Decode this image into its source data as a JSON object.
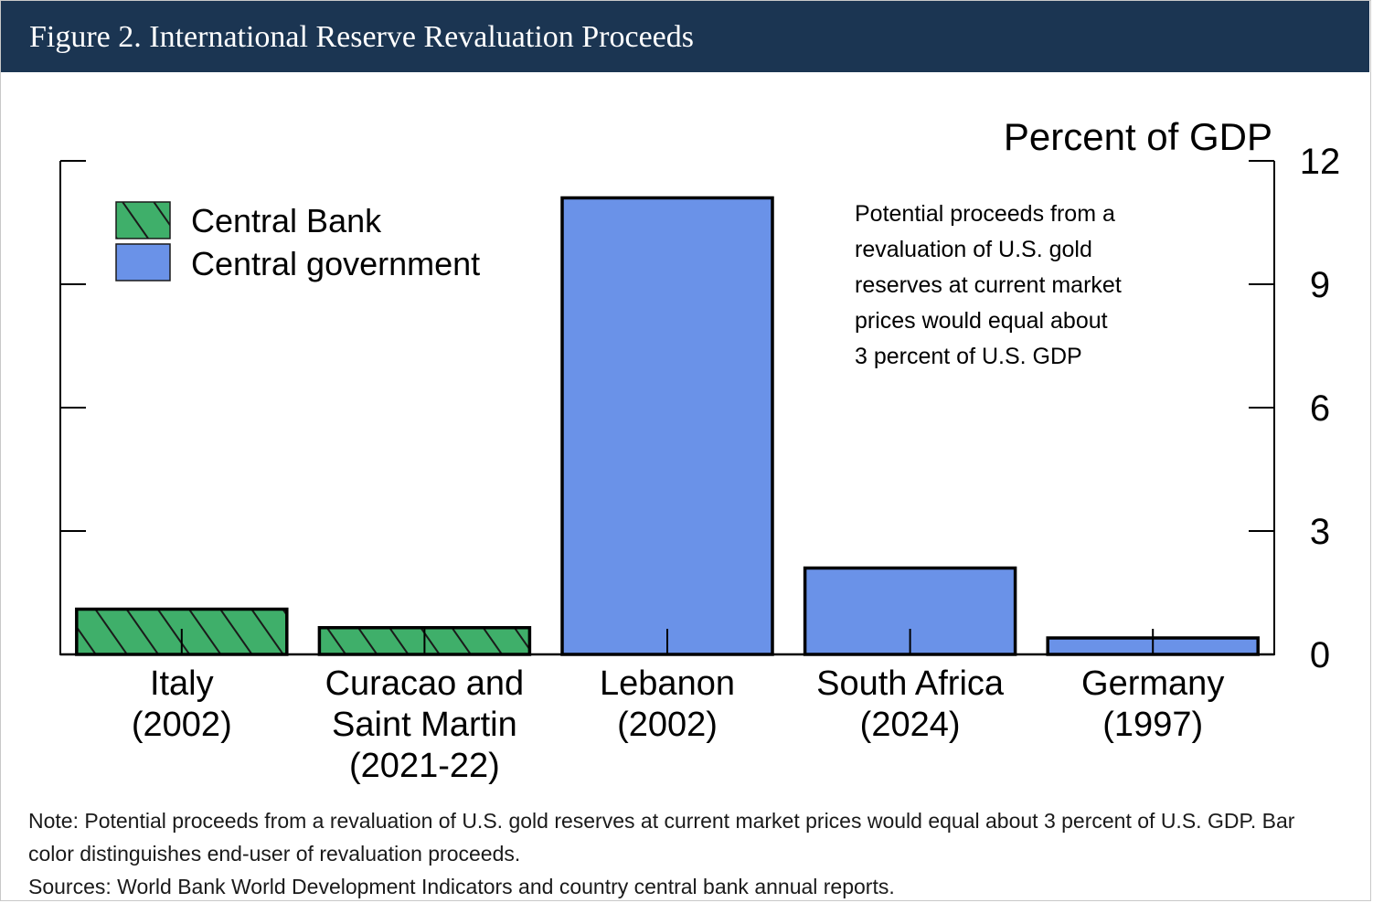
{
  "figure": {
    "title": "Figure 2. International Reserve Revaluation Proceeds"
  },
  "chart_data": {
    "type": "bar",
    "unit_label": "Percent of GDP",
    "categories": [
      {
        "line1": "Italy",
        "line2": "(2002)",
        "line3": ""
      },
      {
        "line1": "Curacao and",
        "line2": "Saint Martin",
        "line3": "(2021-22)"
      },
      {
        "line1": "Lebanon",
        "line2": "(2002)",
        "line3": ""
      },
      {
        "line1": "South Africa",
        "line2": "(2024)",
        "line3": ""
      },
      {
        "line1": "Germany",
        "line2": "(1997)",
        "line3": ""
      }
    ],
    "values": [
      1.1,
      0.65,
      11.1,
      2.1,
      0.4
    ],
    "series_of_bar": [
      "Central Bank",
      "Central Bank",
      "Central government",
      "Central government",
      "Central government"
    ],
    "legend": [
      {
        "name": "Central Bank",
        "color": "#3faf6a",
        "hatched": true
      },
      {
        "name": "Central government",
        "color": "#6a92e8",
        "hatched": false
      }
    ],
    "y_ticks": [
      0,
      3,
      6,
      9,
      12
    ],
    "ylim": [
      0,
      12
    ],
    "legend_position": "top-left",
    "grid": false,
    "annotation": [
      "Potential proceeds from a",
      "revaluation of U.S. gold",
      "reserves at current market",
      "prices would equal about",
      "3 percent of U.S. GDP"
    ]
  },
  "notes": {
    "note": "Note: Potential proceeds from a revaluation of U.S. gold reserves at current market prices would equal about 3 percent of U.S. GDP. Bar color distinguishes end-user of revaluation proceeds.",
    "sources": "Sources: World Bank World Development Indicators and country central bank annual reports."
  }
}
